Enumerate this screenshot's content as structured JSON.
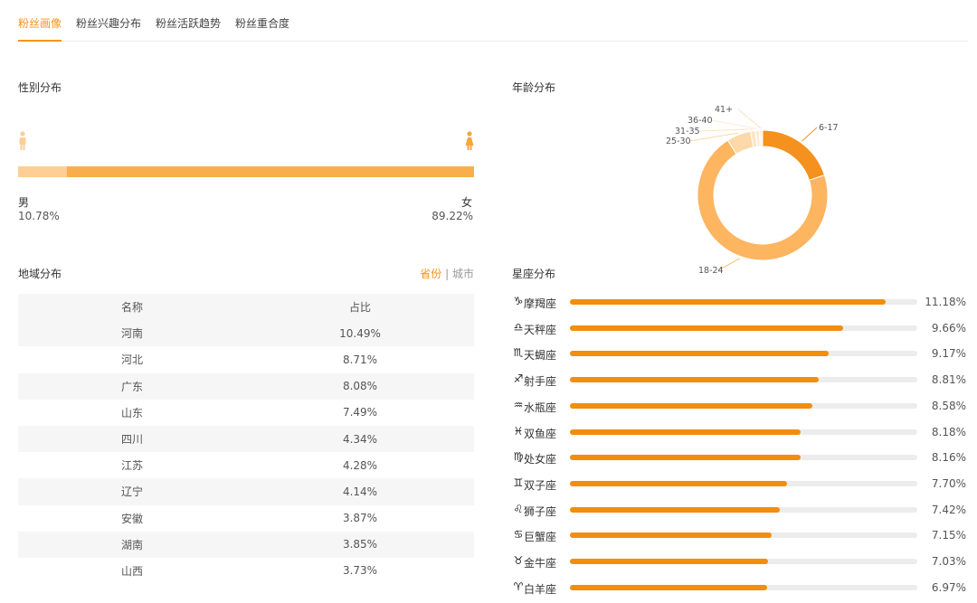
{
  "tabs": [
    "粉丝画像",
    "粉丝兴趣分布",
    "粉丝活跃趋势",
    "粉丝重合度"
  ],
  "gender": {
    "title": "性别分布",
    "male_label": "男",
    "male_value": "10.78%",
    "male_fraction": 0.1078,
    "female_label": "女",
    "female_value": "89.22%",
    "female_fraction": 0.8922
  },
  "region": {
    "title": "地域分布",
    "toggle_province": "省份",
    "toggle_sep": "|",
    "toggle_city": "城市",
    "headers": [
      "名称",
      "占比"
    ],
    "rows": [
      [
        "河南",
        "10.49%"
      ],
      [
        "河北",
        "8.71%"
      ],
      [
        "广东",
        "8.08%"
      ],
      [
        "山东",
        "7.49%"
      ],
      [
        "四川",
        "4.34%"
      ],
      [
        "江苏",
        "4.28%"
      ],
      [
        "辽宁",
        "4.14%"
      ],
      [
        "安徽",
        "3.87%"
      ],
      [
        "湖南",
        "3.85%"
      ],
      [
        "山西",
        "3.73%"
      ]
    ]
  },
  "age": {
    "title": "年龄分布",
    "chart_data": {
      "type": "pie",
      "donut": true,
      "categories": [
        "6-17",
        "18-24",
        "25-30",
        "31-35",
        "36-40",
        "41+"
      ],
      "values": [
        20,
        71,
        6,
        1.2,
        1,
        0.8
      ],
      "colors": [
        "#f5911e",
        "#fdb560",
        "#fdd8a8",
        "#fde5c4",
        "#feecd6",
        "#fff3e6"
      ]
    }
  },
  "zodiac": {
    "title": "星座分布",
    "accent": "#f28d0e",
    "items": [
      {
        "icon": "♑",
        "name": "摩羯座",
        "pct": "11.18%",
        "value": 11.18
      },
      {
        "icon": "♎",
        "name": "天秤座",
        "pct": "9.66%",
        "value": 9.66
      },
      {
        "icon": "♏",
        "name": "天蝎座",
        "pct": "9.17%",
        "value": 9.17
      },
      {
        "icon": "♐",
        "name": "射手座",
        "pct": "8.81%",
        "value": 8.81
      },
      {
        "icon": "♒",
        "name": "水瓶座",
        "pct": "8.58%",
        "value": 8.58
      },
      {
        "icon": "♓",
        "name": "双鱼座",
        "pct": "8.18%",
        "value": 8.18
      },
      {
        "icon": "♍",
        "name": "处女座",
        "pct": "8.16%",
        "value": 8.16
      },
      {
        "icon": "♊",
        "name": "双子座",
        "pct": "7.70%",
        "value": 7.7
      },
      {
        "icon": "♌",
        "name": "狮子座",
        "pct": "7.42%",
        "value": 7.42
      },
      {
        "icon": "♋",
        "name": "巨蟹座",
        "pct": "7.15%",
        "value": 7.15
      },
      {
        "icon": "♉",
        "name": "金牛座",
        "pct": "7.03%",
        "value": 7.03
      },
      {
        "icon": "♈",
        "name": "白羊座",
        "pct": "6.97%",
        "value": 6.97
      }
    ],
    "scale_max": 12.3
  }
}
